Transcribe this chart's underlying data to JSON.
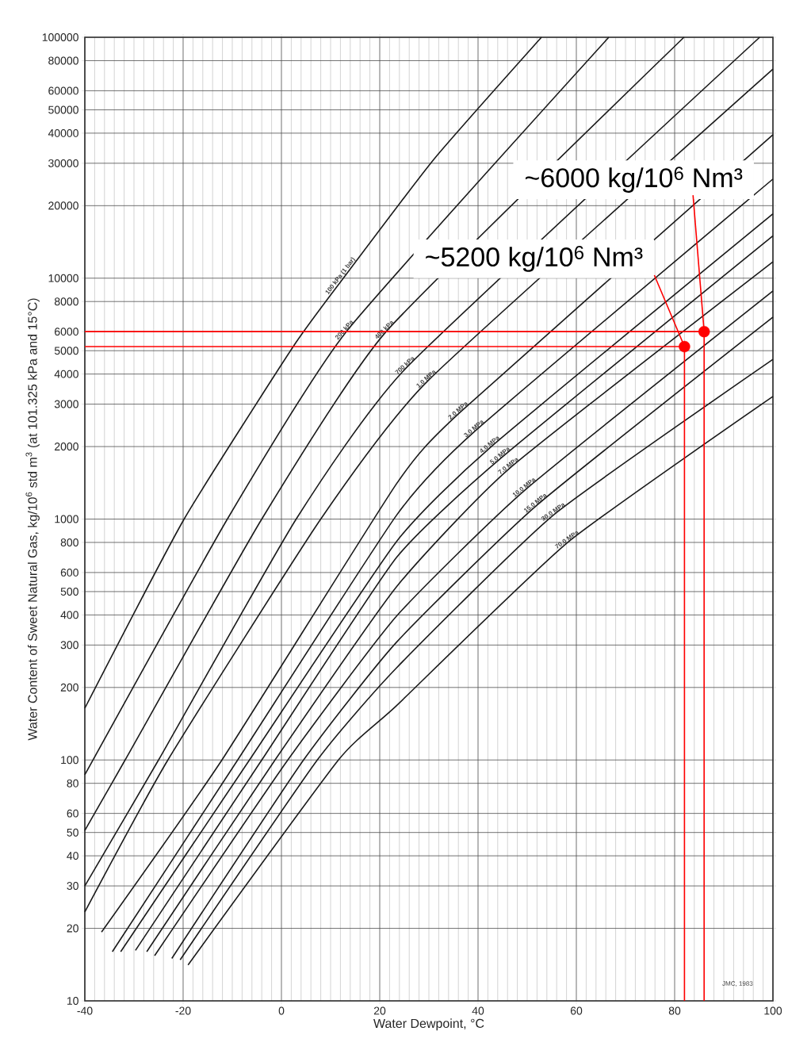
{
  "chart_data": {
    "type": "line",
    "xlabel": "Water Dewpoint, °C",
    "ylabel": "Water Content of Sweet Natural Gas, kg/10$^{6}$ std m$^{3}$ (at 101.325 kPa and 15°C)",
    "xlim": [
      -40,
      100
    ],
    "ylim": [
      10,
      100000
    ],
    "xticks": [
      -40,
      -20,
      0,
      20,
      40,
      60,
      80,
      100
    ],
    "yticks": [
      10,
      20,
      30,
      40,
      50,
      60,
      80,
      100,
      200,
      300,
      400,
      500,
      600,
      800,
      1000,
      2000,
      3000,
      4000,
      5000,
      6000,
      8000,
      10000,
      20000,
      30000,
      40000,
      50000,
      60000,
      80000,
      100000
    ],
    "log": "y",
    "grid": true,
    "series": [
      {
        "name": "100 kPa (1 bar)",
        "color": "#1a1a1a",
        "x": [
          -40,
          -19.8,
          2.4,
          12.6,
          31.1,
          52.9
        ],
        "values": [
          164,
          1000,
          5200,
          10000,
          31300,
          100000
        ]
      },
      {
        "name": "200 kPa",
        "color": "#1a1a1a",
        "x": [
          -40,
          -11,
          13.2,
          66.6
        ],
        "values": [
          86.8,
          1000,
          6000,
          100000
        ]
      },
      {
        "name": "400 kPa",
        "color": "#1a1a1a",
        "x": [
          -40,
          -31.8,
          -4,
          21.3,
          81.9
        ],
        "values": [
          51,
          100,
          1000,
          6000,
          100000
        ]
      },
      {
        "name": "700 kPa",
        "color": "#1a1a1a",
        "x": [
          -40,
          -25,
          3,
          25.5,
          97.3
        ],
        "values": [
          30,
          100,
          1000,
          4265,
          100000
        ]
      },
      {
        "name": "1.0 MPa",
        "color": "#1a1a1a",
        "x": [
          -40,
          -23.1,
          8,
          29.8,
          100
        ],
        "values": [
          23.4,
          100,
          1000,
          3750,
          73800
        ]
      },
      {
        "name": "2.0 MPa",
        "color": "#1a1a1a",
        "x": [
          -36.6,
          -12.1,
          23.4,
          36.3,
          100
        ],
        "values": [
          19.3,
          100,
          1400,
          2770,
          39400
        ]
      },
      {
        "name": "3.0 MPa",
        "color": "#1a1a1a",
        "x": [
          -34.4,
          -8.9,
          23.4,
          39.5,
          100
        ],
        "values": [
          16,
          100,
          1036,
          2330,
          25800
        ]
      },
      {
        "name": "4.0 MPa",
        "color": "#1a1a1a",
        "x": [
          -32.7,
          -6.5,
          23.4,
          42.7,
          100
        ],
        "values": [
          16,
          100,
          806,
          2000,
          18500
        ]
      },
      {
        "name": "5.0 MPa",
        "color": "#1a1a1a",
        "x": [
          -29.7,
          -4.0,
          23.4,
          44.8,
          100
        ],
        "values": [
          16.2,
          100,
          692,
          1800,
          15000
        ]
      },
      {
        "name": "7.0 MPa",
        "color": "#1a1a1a",
        "x": [
          -27.4,
          -1.3,
          23.4,
          46.5,
          100
        ],
        "values": [
          16,
          100,
          523,
          1630,
          11700
        ]
      },
      {
        "name": "10.0 MPa",
        "color": "#1a1a1a",
        "x": [
          -25.8,
          1.3,
          23.4,
          49.7,
          100
        ],
        "values": [
          15.4,
          100,
          395,
          1328,
          8850
        ]
      },
      {
        "name": "15.0 MPa",
        "color": "#1a1a1a",
        "x": [
          -22.3,
          4.5,
          23.4,
          52,
          100
        ],
        "values": [
          15,
          100,
          308,
          1143,
          6890
        ]
      },
      {
        "name": "30.0 MPa",
        "color": "#1a1a1a",
        "x": [
          -20.6,
          7.3,
          23.4,
          55.6,
          100
        ],
        "values": [
          14.8,
          100,
          241,
          1050,
          4600
        ]
      },
      {
        "name": "70.0 MPa",
        "color": "#1a1a1a",
        "x": [
          -19,
          11.6,
          23.4,
          58.4,
          100
        ],
        "values": [
          14.1,
          100,
          168,
          805,
          3230
        ]
      },
      {
        "type": "scatter",
        "color": "#ff0000",
        "x": [
          86,
          82
        ],
        "values": [
          6000,
          5200
        ]
      }
    ],
    "ref_lines": [
      {
        "axis": "y",
        "value": 6000,
        "color": "#ff0000"
      },
      {
        "axis": "y",
        "value": 5200,
        "color": "#ff0000"
      },
      {
        "axis": "x",
        "value": 86,
        "color": "#ff0000"
      },
      {
        "axis": "x",
        "value": 82,
        "color": "#ff0000"
      }
    ],
    "annotations": [
      {
        "text": "~6000  kg/10$^{6}$ Nm³",
        "x": 86,
        "y": 6000
      },
      {
        "text": "~5200  kg/10$^{6}$ Nm³",
        "x": 82,
        "y": 5200
      },
      "JMC, 1983"
    ]
  }
}
